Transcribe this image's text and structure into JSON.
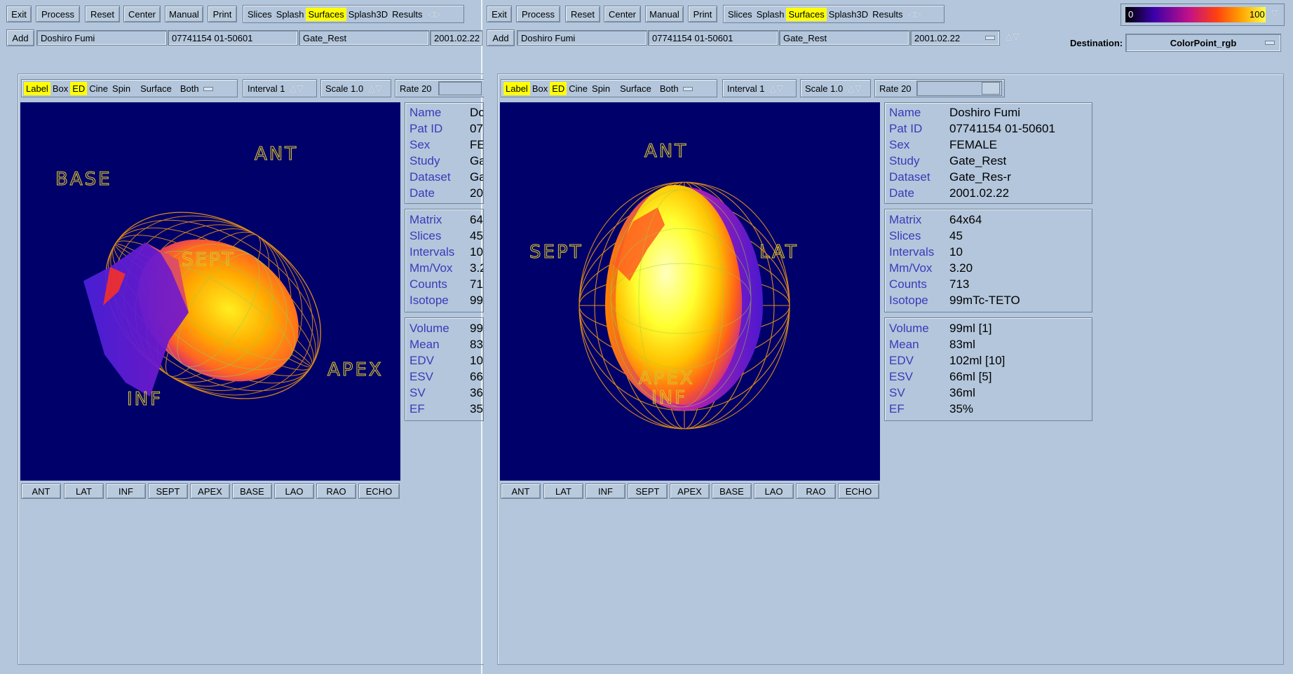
{
  "toolbar": {
    "exit": "Exit",
    "process": "Process",
    "reset": "Reset",
    "center": "Center",
    "manual": "Manual",
    "print": "Print",
    "modes": [
      "Slices",
      "Splash",
      "Surfaces",
      "Splash3D",
      "Results"
    ],
    "active_mode": "Surfaces"
  },
  "patient_bar": {
    "add": "Add",
    "name": "Doshiro Fumi",
    "pat_id": "07741154  01-50601",
    "study": "Gate_Rest",
    "date": "2001.02.22"
  },
  "colorbar": {
    "min": "0",
    "max": "100"
  },
  "destination": {
    "label": "Destination:",
    "value": "ColorPoint_rgb"
  },
  "view_toolbar": {
    "label": "Label",
    "box": "Box",
    "ed": "ED",
    "cine": "Cine",
    "spin": "Spin",
    "surface_label": "Surface",
    "surface_value": "Both",
    "interval": "Interval 1",
    "scale": "Scale 1.0",
    "rate": "Rate 20"
  },
  "view_buttons": [
    "ANT",
    "LAT",
    "INF",
    "SEPT",
    "APEX",
    "BASE",
    "LAO",
    "RAO",
    "ECHO"
  ],
  "left_view_labels": {
    "base": "BASE",
    "ant": "ANT",
    "sept": "SEPT",
    "apex": "APEX",
    "inf": "INF"
  },
  "right_view_labels": {
    "ant": "ANT",
    "sept": "SEPT",
    "lat": "LAT",
    "apex": "APEX",
    "inf": "INF"
  },
  "info": {
    "patient": [
      {
        "k": "Name",
        "v": "Doshiro Fumi"
      },
      {
        "k": "Pat ID",
        "v": "07741154  01-50601"
      },
      {
        "k": "Sex",
        "v": "FEMALE"
      },
      {
        "k": "Study",
        "v": "Gate_Rest"
      },
      {
        "k": "Dataset",
        "v": "Gate_Res-r"
      },
      {
        "k": "Date",
        "v": "2001.02.22"
      }
    ],
    "acq": [
      {
        "k": "Matrix",
        "v": "64x64"
      },
      {
        "k": "Slices",
        "v": "45"
      },
      {
        "k": "Intervals",
        "v": "10"
      },
      {
        "k": "Mm/Vox",
        "v": "3.20"
      },
      {
        "k": "Counts",
        "v": "713"
      },
      {
        "k": "Isotope",
        "v": "99mTc-TETO"
      }
    ],
    "results": [
      {
        "k": "Volume",
        "v": "99ml [1]"
      },
      {
        "k": "Mean",
        "v": "83ml"
      },
      {
        "k": "EDV",
        "v": "102ml [10]"
      },
      {
        "k": "ESV",
        "v": "66ml [5]"
      },
      {
        "k": "SV",
        "v": "36ml"
      },
      {
        "k": "EF",
        "v": "35%"
      }
    ]
  },
  "colors": {
    "bg": "#b3c6dc",
    "view_bg": "#00006b",
    "highlight": "#ffff00",
    "key_text": "#3a3ab8"
  }
}
